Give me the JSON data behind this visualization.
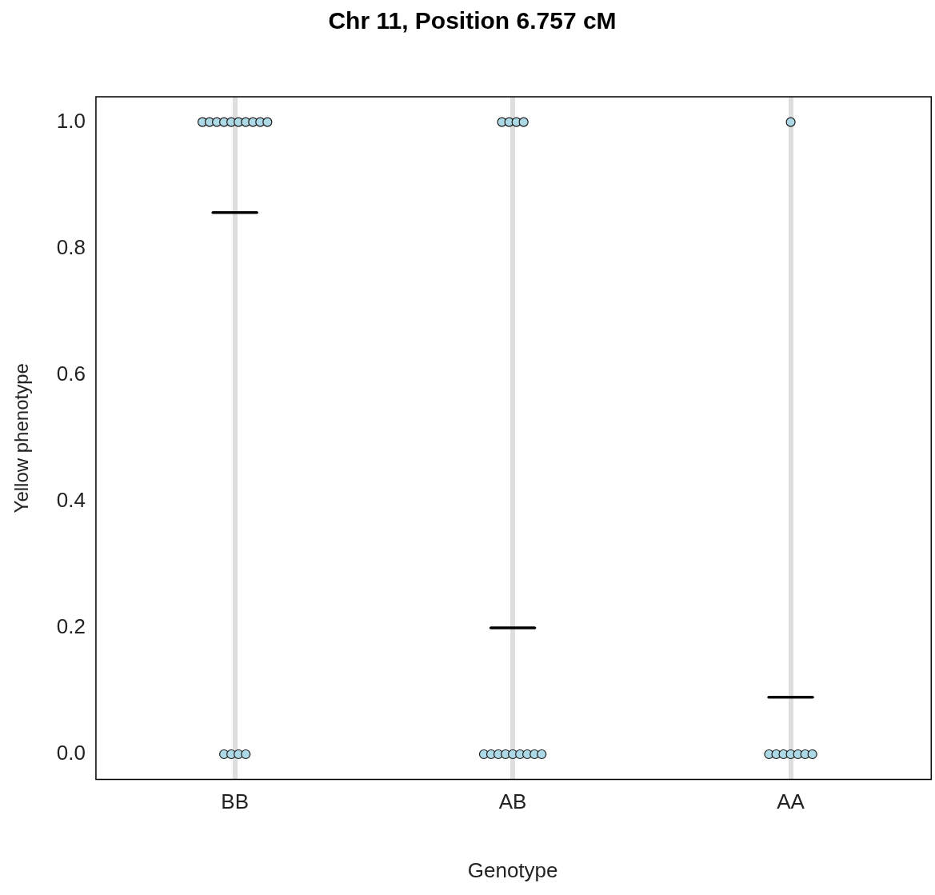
{
  "chart_data": {
    "type": "scatter",
    "title": "Chr 11, Position 6.757 cM",
    "xlabel": "Genotype",
    "ylabel": "Yellow phenotype",
    "categories": [
      "BB",
      "AB",
      "AA"
    ],
    "ylim": [
      -0.04,
      1.04
    ],
    "yticks": [
      {
        "value": 0,
        "label": "0.0"
      },
      {
        "value": 0.2,
        "label": "0.2"
      },
      {
        "value": 0.4,
        "label": "0.4"
      },
      {
        "value": 0.6,
        "label": "0.6"
      },
      {
        "value": 0.8,
        "label": "0.8"
      },
      {
        "value": 1,
        "label": "1.0"
      }
    ],
    "grid": "x",
    "marker": "circle",
    "series": [
      {
        "color": "#add8e6",
        "x": [
          "BB",
          "BB",
          "BB",
          "BB",
          "BB",
          "BB",
          "BB",
          "BB",
          "BB",
          "BB",
          "BB",
          "BB",
          "BB",
          "BB"
        ],
        "values": [
          1,
          1,
          1,
          1,
          1,
          1,
          1,
          1,
          1,
          1,
          0,
          0,
          0,
          0
        ]
      },
      {
        "color": "#add8e6",
        "x": [
          "AB",
          "AB",
          "AB",
          "AB",
          "AB",
          "AB",
          "AB",
          "AB",
          "AB",
          "AB",
          "AB",
          "AB",
          "AB"
        ],
        "values": [
          1,
          1,
          1,
          1,
          0,
          0,
          0,
          0,
          0,
          0,
          0,
          0,
          0
        ]
      },
      {
        "color": "#add8e6",
        "x": [
          "AA",
          "AA",
          "AA",
          "AA",
          "AA",
          "AA",
          "AA",
          "AA"
        ],
        "values": [
          1,
          0,
          0,
          0,
          0,
          0,
          0,
          0
        ]
      },
      {
        "type": "box",
        "color": "#000000",
        "boxes": [
          {
            "low": 0.857,
            "q1": 0.857,
            "median": 0.857,
            "q3": 0.857,
            "high": 0.857
          },
          {
            "low": 0.2,
            "q1": 0.2,
            "median": 0.2,
            "q3": 0.2,
            "high": 0.2
          },
          {
            "low": 0.09,
            "q1": 0.09,
            "median": 0.09,
            "q3": 0.09,
            "high": 0.09
          }
        ]
      }
    ]
  }
}
